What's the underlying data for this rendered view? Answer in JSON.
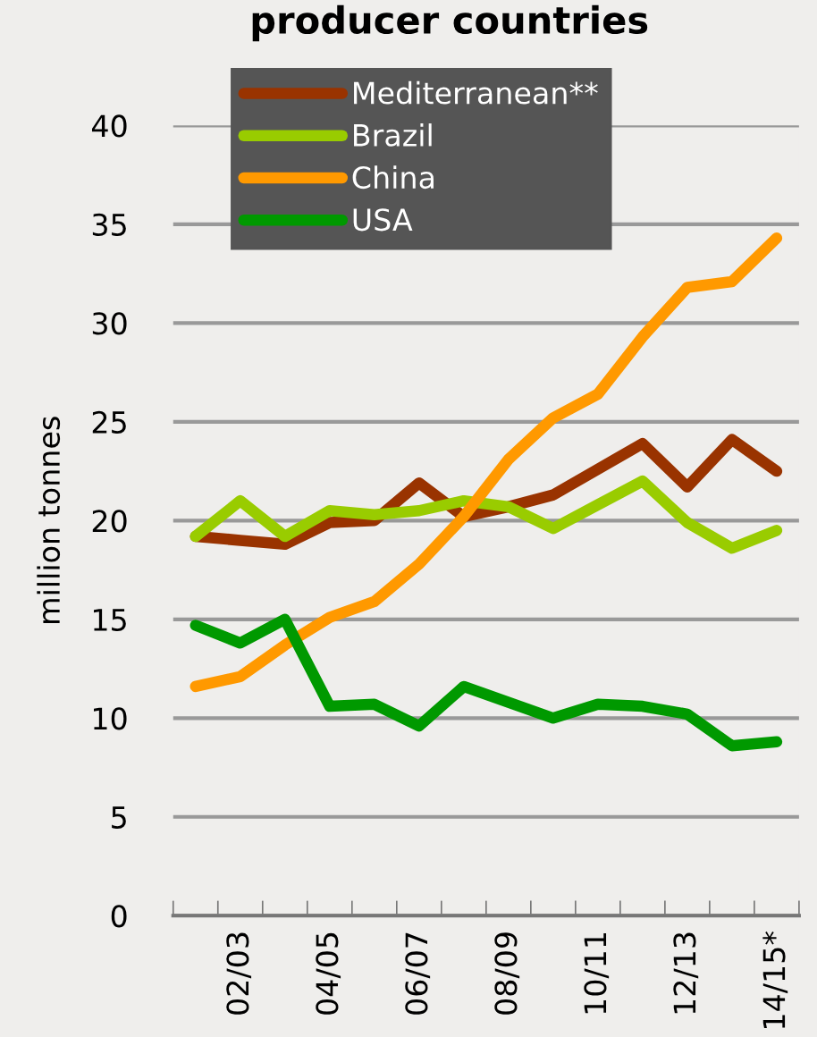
{
  "chart_data": {
    "type": "line",
    "title": "producer countries",
    "ylabel": "million tonnes",
    "categories": [
      null,
      "02/03",
      null,
      "04/05",
      null,
      "06/07",
      null,
      "08/09",
      null,
      "10/11",
      null,
      "12/13",
      null,
      "14/15*"
    ],
    "series": [
      {
        "name": "Mediterranean**",
        "color": "#993300",
        "values": [
          19.2,
          19.0,
          18.8,
          19.9,
          20.0,
          21.9,
          20.2,
          20.7,
          21.3,
          22.6,
          23.9,
          21.7,
          24.1,
          22.5
        ]
      },
      {
        "name": "Brazil",
        "color": "#99cc00",
        "values": [
          19.2,
          21.0,
          19.2,
          20.5,
          20.3,
          20.5,
          21.0,
          20.7,
          19.6,
          20.8,
          22.0,
          19.9,
          18.6,
          19.5
        ]
      },
      {
        "name": "China",
        "color": "#ff9900",
        "values": [
          11.6,
          12.1,
          13.7,
          15.1,
          15.9,
          17.8,
          20.2,
          23.1,
          25.2,
          26.4,
          29.3,
          31.8,
          32.1,
          34.3
        ]
      },
      {
        "name": "USA",
        "color": "#009900",
        "values": [
          14.7,
          13.8,
          15.0,
          10.6,
          10.7,
          9.6,
          11.6,
          10.8,
          10.0,
          10.7,
          10.6,
          10.2,
          8.6,
          8.8
        ]
      }
    ],
    "ylim": [
      0,
      40
    ],
    "yticks": [
      0,
      5,
      10,
      15,
      20,
      25,
      30,
      35,
      40
    ],
    "grid": "y",
    "legend": "top left",
    "marker": "none",
    "line_style": "solid"
  }
}
